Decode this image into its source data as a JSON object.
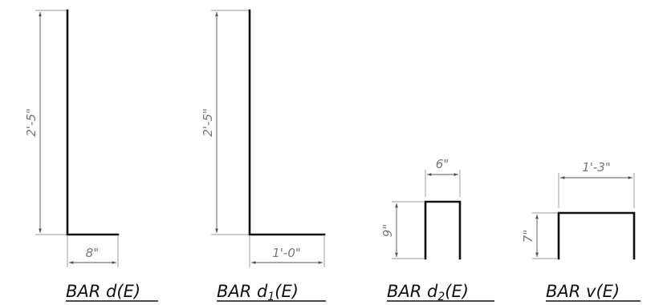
{
  "bars": [
    {
      "name": "BAR d(E)",
      "title_prefix": "BAR d",
      "title_sub": "",
      "title_suffix": "(E)",
      "height_dim": "2'-5\"",
      "width_dim": "8\""
    },
    {
      "name": "BAR d1(E)",
      "title_prefix": "BAR d",
      "title_sub": "1",
      "title_suffix": "(E)",
      "height_dim": "2'-5\"",
      "width_dim": "1'-0\""
    },
    {
      "name": "BAR d2(E)",
      "title_prefix": "BAR d",
      "title_sub": "2",
      "title_suffix": "(E)",
      "height_dim": "9\"",
      "width_dim": "6\""
    },
    {
      "name": "BAR v(E)",
      "title_prefix": "BAR v",
      "title_sub": "",
      "title_suffix": "(E)",
      "height_dim": "7\"",
      "width_dim": "1'-3\""
    }
  ],
  "colors": {
    "line": "#111111",
    "dimension": "#555555",
    "dimension_text": "#777777"
  }
}
